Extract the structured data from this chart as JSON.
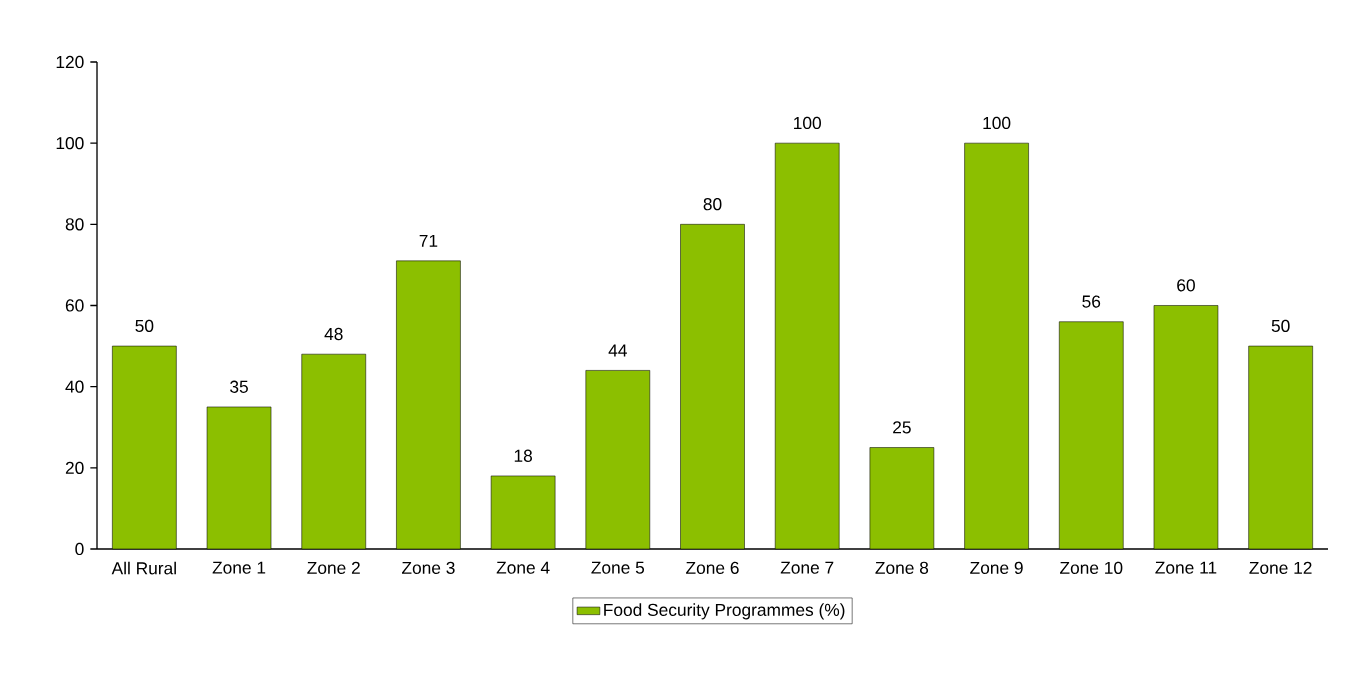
{
  "chart_data": {
    "type": "bar",
    "categories": [
      "All Rural",
      "Zone 1",
      "Zone 2",
      "Zone 3",
      "Zone 4",
      "Zone 5",
      "Zone 6",
      "Zone 7",
      "Zone 8",
      "Zone 9",
      "Zone 10",
      "Zone 11",
      "Zone 12"
    ],
    "series": [
      {
        "name": "Food Security Programmes (%)",
        "color": "#8cbf00",
        "values": [
          50,
          35,
          48,
          71,
          18,
          44,
          80,
          100,
          25,
          100,
          56,
          60,
          50
        ]
      }
    ],
    "ylim": [
      0,
      120
    ],
    "yticks": [
      0,
      20,
      40,
      60,
      80,
      100,
      120
    ],
    "data_labels": true,
    "legend": "bottom",
    "grid": false
  }
}
